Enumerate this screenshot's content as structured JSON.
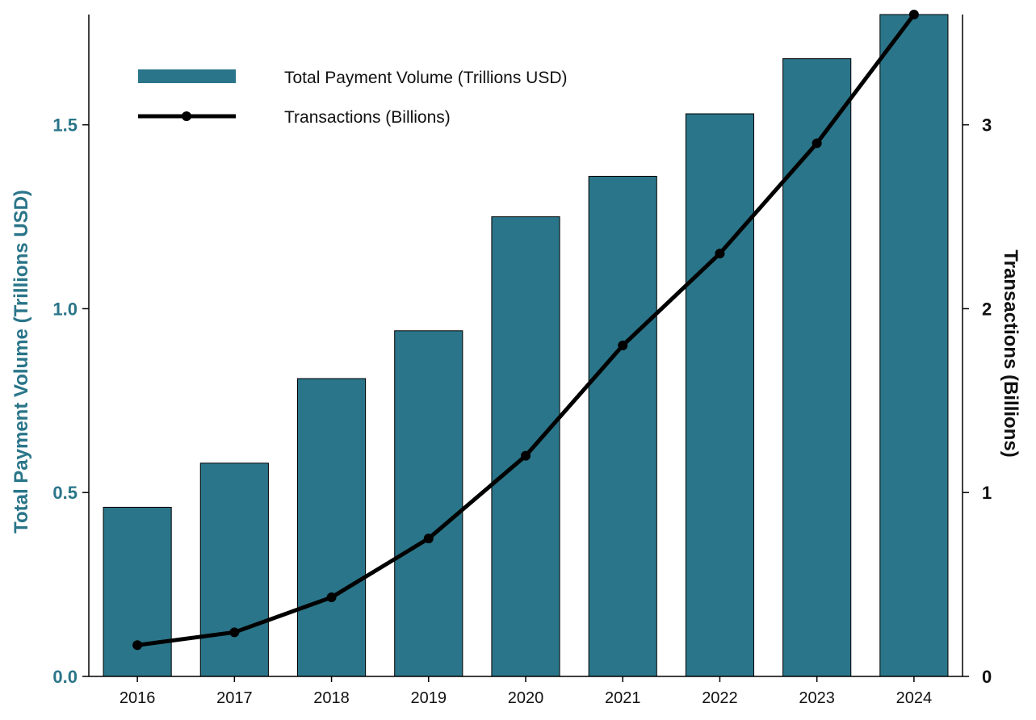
{
  "colors": {
    "bar": "#2a7589",
    "line": "#000000",
    "left_axis_text": "#2a7589"
  },
  "chart_data": {
    "type": "bar",
    "categories": [
      "2016",
      "2017",
      "2018",
      "2019",
      "2020",
      "2021",
      "2022",
      "2023",
      "2024"
    ],
    "series": [
      {
        "name": "Total Payment Volume (Trillions USD)",
        "type": "bar",
        "axis": "left",
        "values": [
          0.46,
          0.58,
          0.81,
          0.94,
          1.25,
          1.36,
          1.53,
          1.68,
          1.8
        ]
      },
      {
        "name": "Transactions (Billions)",
        "type": "line",
        "axis": "right",
        "values": [
          0.17,
          0.24,
          0.43,
          0.75,
          1.2,
          1.8,
          2.3,
          2.9,
          3.6
        ]
      }
    ],
    "ylabel": "Total Payment Volume (Trillions USD)",
    "y2label": "Transactions (Billions)",
    "ylim": [
      0,
      1.8
    ],
    "y2lim": [
      0,
      3.6
    ],
    "yticks": [
      0.0,
      0.5,
      1.0,
      1.5
    ],
    "ytick_labels": [
      "0.0",
      "0.5",
      "1.0",
      "1.5"
    ],
    "y2ticks": [
      0,
      1,
      2,
      3
    ],
    "y2tick_labels": [
      "0",
      "1",
      "2",
      "3"
    ],
    "grid": false,
    "legend_position": "top-left"
  }
}
